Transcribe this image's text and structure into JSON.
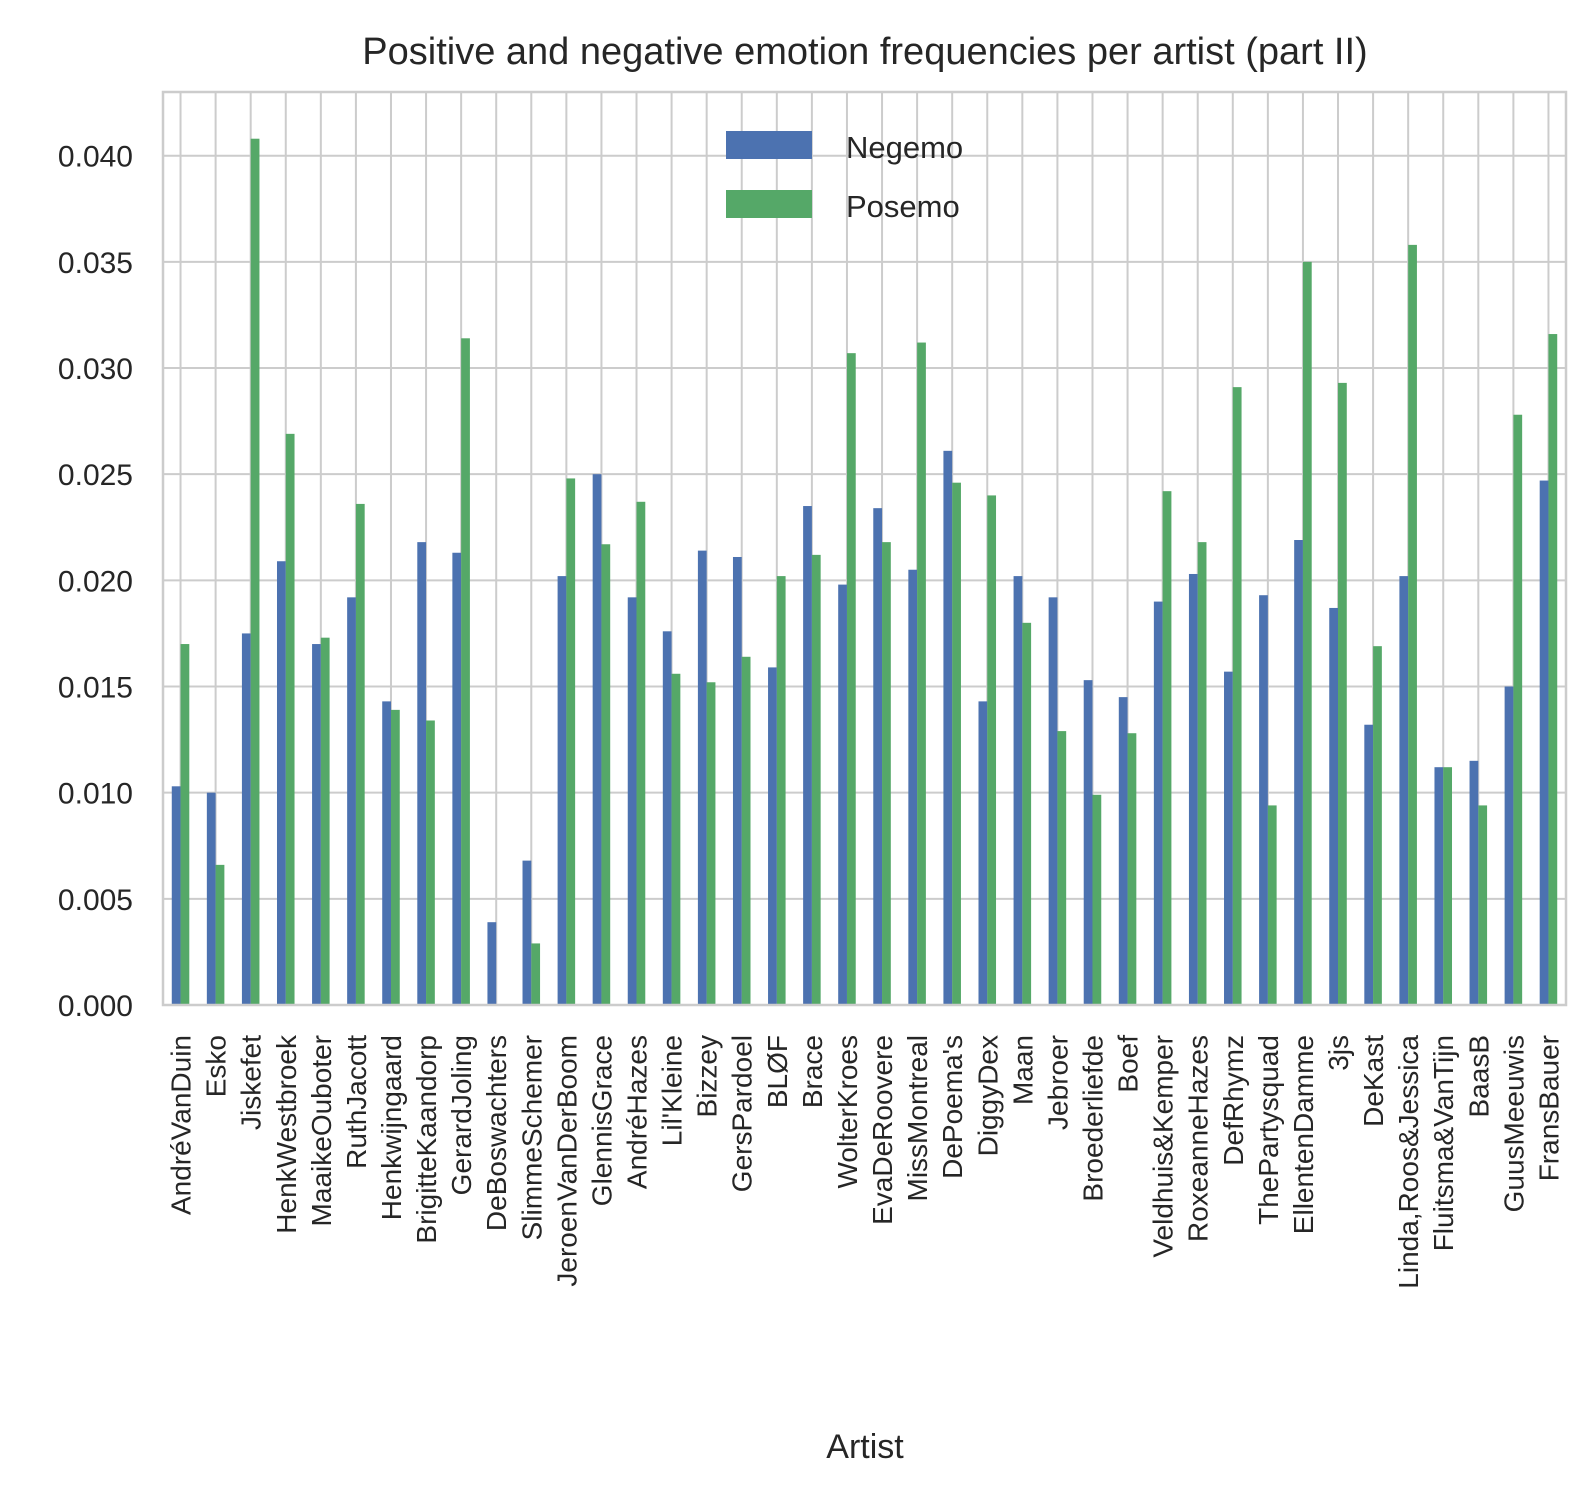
{
  "chart_data": {
    "type": "bar",
    "title": "Positive and negative emotion frequencies per artist (part II)",
    "xlabel": "Artist",
    "ylabel": "",
    "ylim": [
      0,
      0.043
    ],
    "yticks": [
      "0.000",
      "0.005",
      "0.010",
      "0.015",
      "0.020",
      "0.025",
      "0.030",
      "0.035",
      "0.040"
    ],
    "grid": true,
    "legend_position": "top-center",
    "categories": [
      "AndréVanDuin",
      "Esko",
      "Jiskefet",
      "HenkWestbroek",
      "MaaikeOubo­ter",
      "RuthJacott",
      "Henkwijngaard",
      "BrigitteKaandorp",
      "GerardJoling",
      "DeBoswachters",
      "SlimmeSchemer",
      "JeroenVanDerBoom",
      "GlennisGrace",
      "AndréHazes",
      "Lil'Kleine",
      "Bizzey",
      "GersPardoel",
      "BLØF",
      "Brace",
      "WolterKroes",
      "EvaDeRoovere",
      "MissMontreal",
      "DePoema's",
      "DiggyDex",
      "Maan",
      "Jebroer",
      "Broederliefde",
      "Boef",
      "Veldhuis&Kemper",
      "RoxeanneHazes",
      "DefRhymz",
      "ThePartysquad",
      "EllentenDamme",
      "3js",
      "DeKast",
      "Linda,Roos&Jessica",
      "Fluitsma&VanTijn",
      "BaasB",
      "GuusMeeuwis",
      "FransBauer"
    ],
    "series": [
      {
        "name": "Negemo",
        "color": "#4c72b0",
        "values": [
          0.0103,
          0.01,
          0.0175,
          0.0209,
          0.017,
          0.0192,
          0.0143,
          0.0218,
          0.0213,
          0.0039,
          0.0068,
          0.0202,
          0.025,
          0.0192,
          0.0176,
          0.0214,
          0.0211,
          0.0159,
          0.0235,
          0.0198,
          0.0234,
          0.0205,
          0.0261,
          0.0143,
          0.0202,
          0.0192,
          0.0153,
          0.0145,
          0.019,
          0.0203,
          0.0157,
          0.0193,
          0.0219,
          0.0187,
          0.0132,
          0.0202,
          0.0112,
          0.0115,
          0.015,
          0.0247
        ]
      },
      {
        "name": "Posemo",
        "color": "#55a868",
        "values": [
          0.017,
          0.0066,
          0.0408,
          0.0269,
          0.0173,
          0.0236,
          0.0139,
          0.0134,
          0.0314,
          0.0,
          0.0029,
          0.0248,
          0.0217,
          0.0237,
          0.0156,
          0.0152,
          0.0164,
          0.0202,
          0.0212,
          0.0307,
          0.0218,
          0.0312,
          0.0246,
          0.024,
          0.018,
          0.0129,
          0.0099,
          0.0128,
          0.0242,
          0.0218,
          0.0291,
          0.0094,
          0.035,
          0.0293,
          0.0169,
          0.0358,
          0.0112,
          0.0094,
          0.0278,
          0.0316
        ]
      }
    ]
  }
}
